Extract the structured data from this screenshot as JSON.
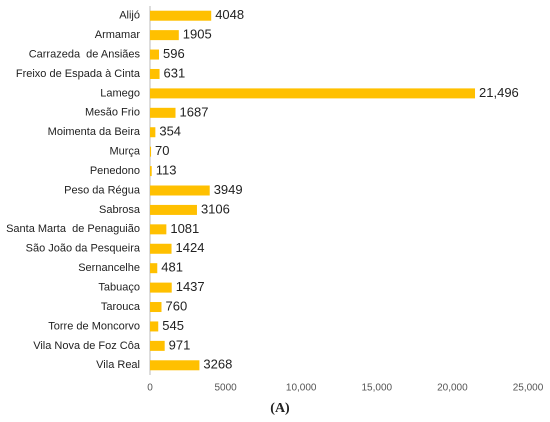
{
  "chart_data": {
    "type": "bar",
    "orientation": "horizontal",
    "color": "#FFC000",
    "caption": "(A)",
    "categories": [
      "Alijó",
      "Armamar",
      "Carrazeda  de Ansiães",
      "Freixo de Espada à Cinta",
      "Lamego",
      "Mesão Frio",
      "Moimenta da Beira",
      "Murça",
      "Penedono",
      "Peso da Régua",
      "Sabrosa",
      "Santa Marta  de Penaguião",
      "São João da Pesqueira",
      "Sernancelhe",
      "Tabuaço",
      "Tarouca",
      "Torre de Moncorvo",
      "Vila Nova de Foz Côa",
      "Vila Real"
    ],
    "values": [
      4048,
      1905,
      596,
      631,
      21496,
      1687,
      354,
      70,
      113,
      3949,
      3106,
      1081,
      1424,
      481,
      1437,
      760,
      545,
      971,
      3268
    ],
    "value_labels": [
      "4048",
      "1905",
      "596",
      "631",
      "21,496",
      "1687",
      "354",
      "70",
      "113",
      "3949",
      "3106",
      "1081",
      "1424",
      "481",
      "1437",
      "760",
      "545",
      "971",
      "3268"
    ],
    "xlim": [
      0,
      25000
    ],
    "xticks": [
      0,
      5000,
      {
        "value": 10000,
        "label": "10,000"
      },
      {
        "value": 15000,
        "label": "15,000"
      },
      {
        "value": 20000,
        "label": "20,000"
      },
      {
        "value": 25000,
        "label": "25,000"
      }
    ],
    "grid": false
  }
}
